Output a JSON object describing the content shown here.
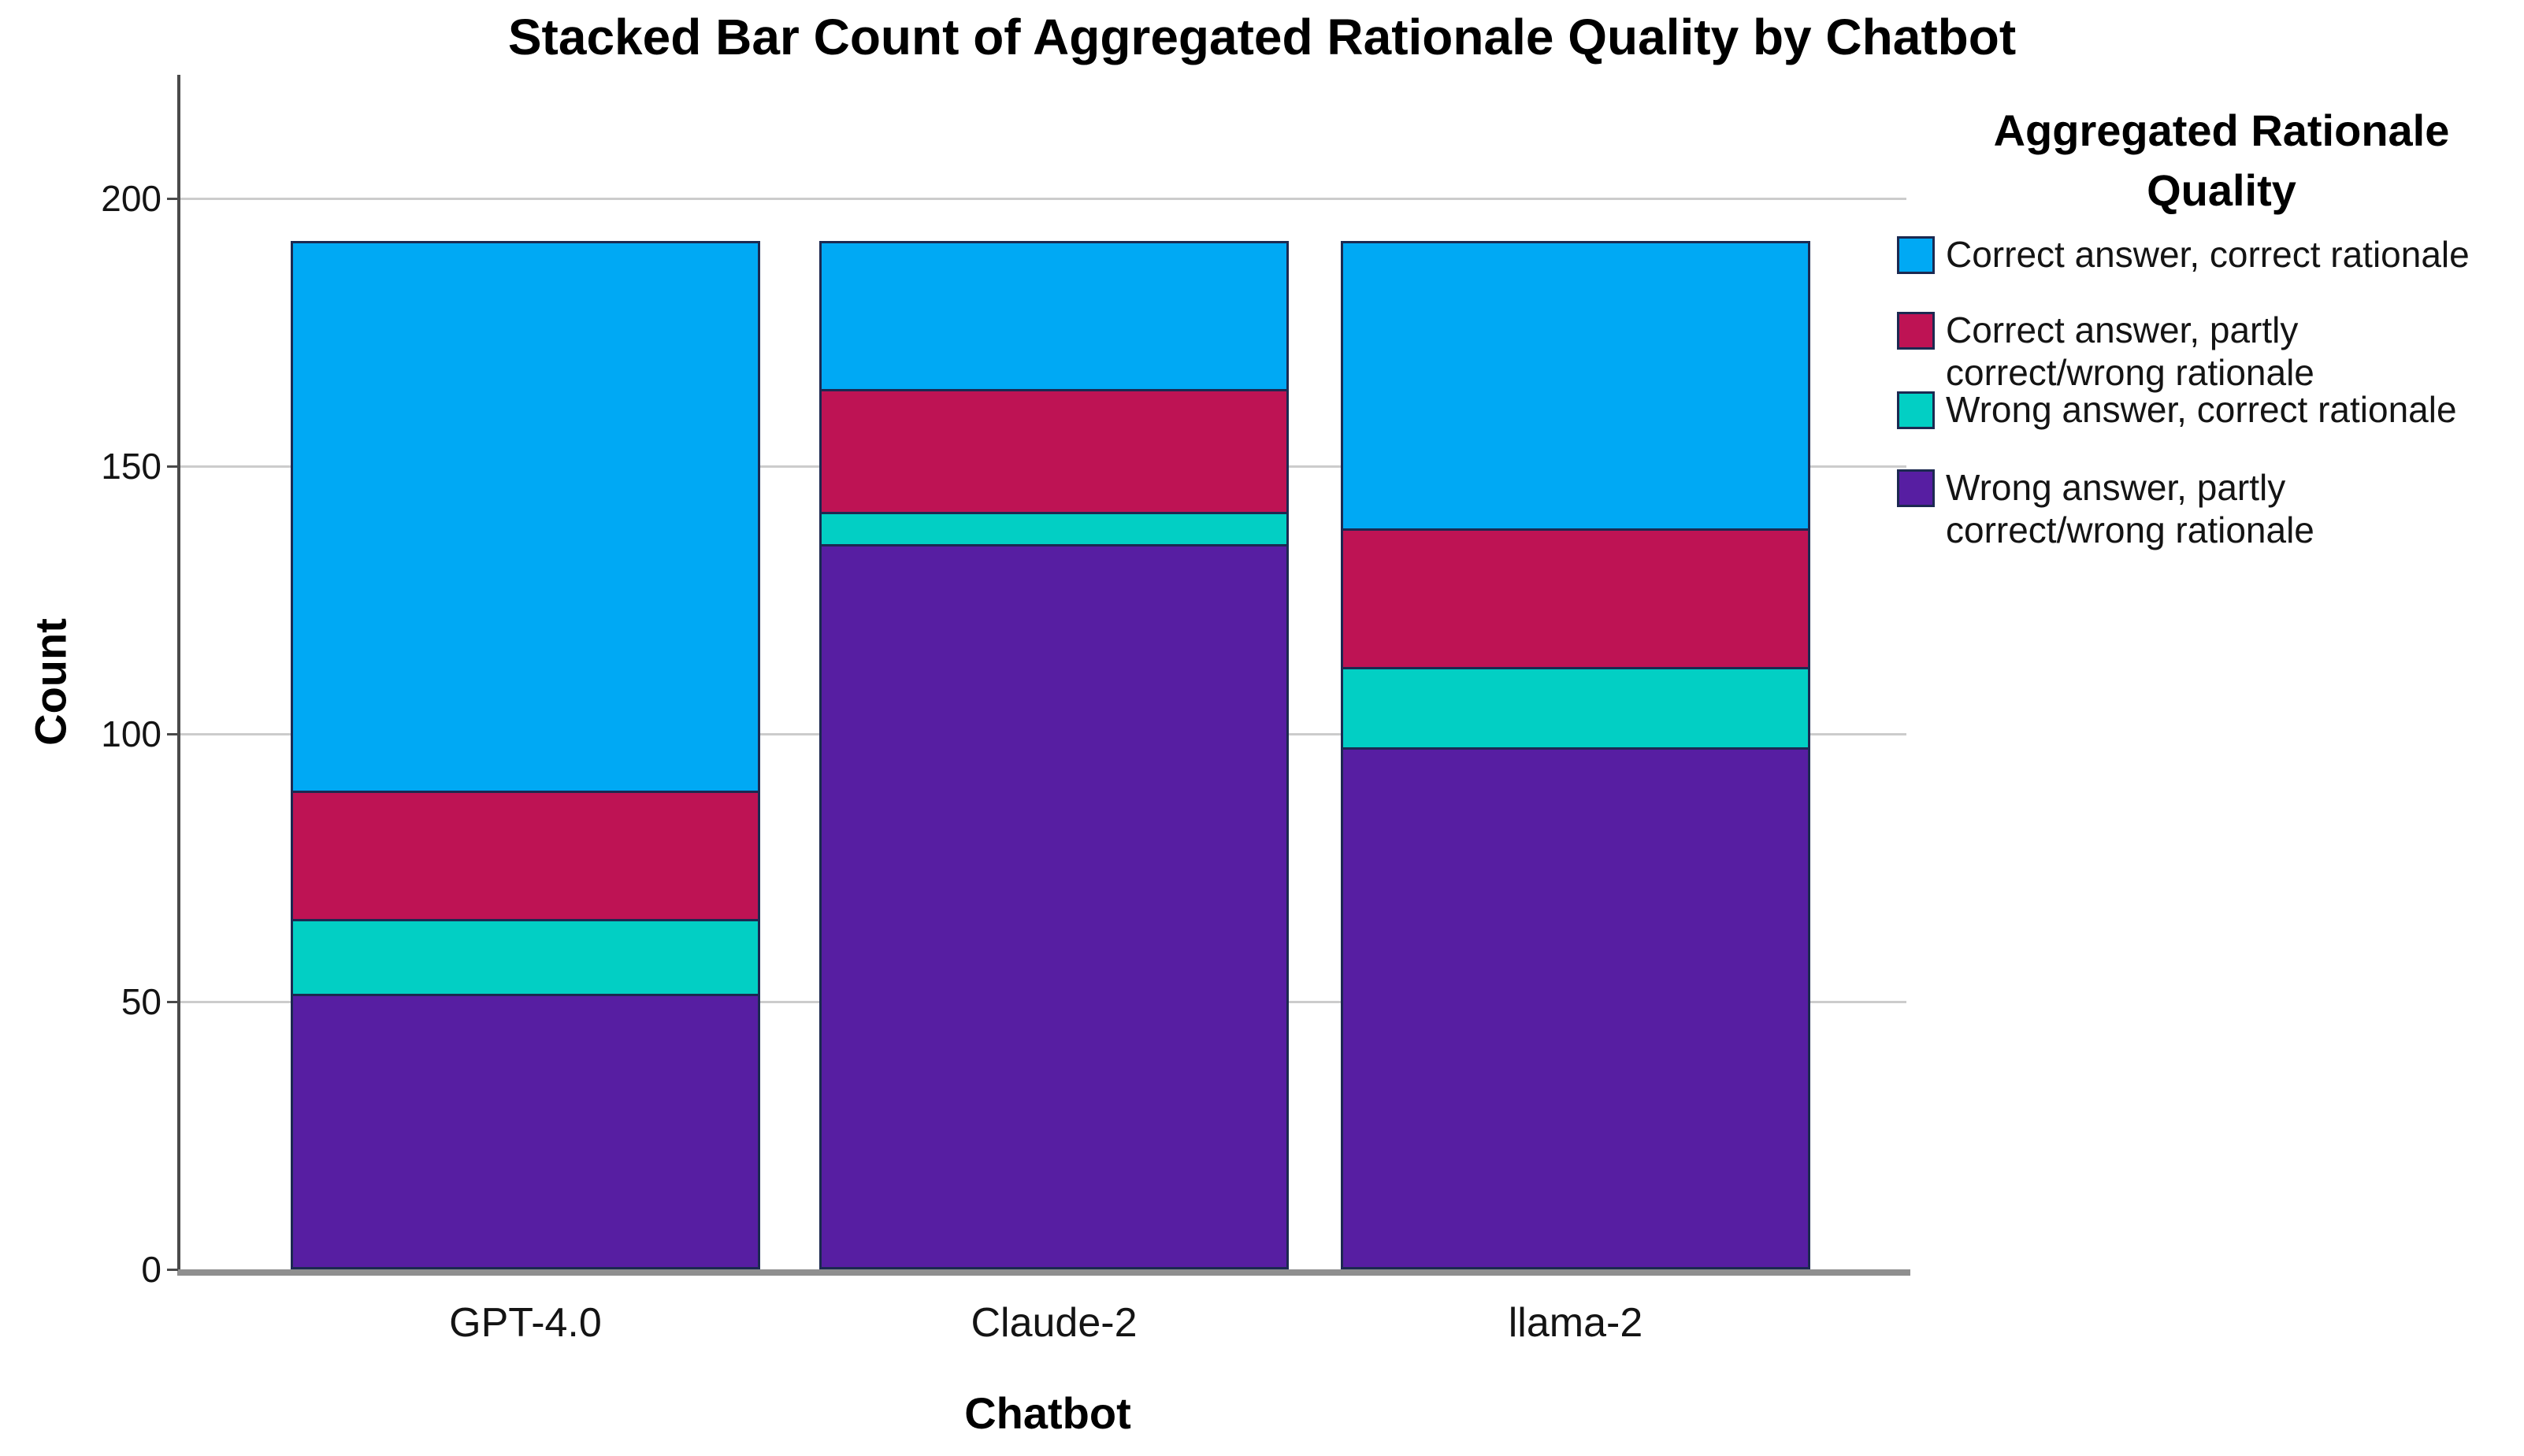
{
  "title": "Stacked Bar Count of Aggregated Rationale Quality by Chatbot",
  "y_axis": {
    "label": "Count",
    "ticks": [
      0,
      50,
      100,
      150,
      200
    ]
  },
  "x_axis": {
    "label": "Chatbot",
    "categories": [
      "GPT-4.0",
      "Claude-2",
      "llama-2"
    ]
  },
  "legend": {
    "title_lines": [
      "Aggregated Rationale",
      "Quality"
    ],
    "entries": [
      {
        "lines": [
          "Correct answer, correct rationale"
        ],
        "color": "#00A9F4"
      },
      {
        "lines": [
          "Correct answer, partly",
          "correct/wrong rationale"
        ],
        "color": "#BE1354"
      },
      {
        "lines": [
          "Wrong answer, correct rationale"
        ],
        "color": "#02CFC4"
      },
      {
        "lines": [
          "Wrong answer, partly",
          "correct/wrong rationale"
        ],
        "color": "#571EA2"
      }
    ]
  },
  "colors": {
    "blue": "#00A9F4",
    "crimson": "#BE1354",
    "teal": "#02CFC4",
    "purple": "#571EA2",
    "segment_border": "#1c2951",
    "gridline": "#cccccc",
    "axis": "#4a4a4a"
  },
  "chart_data": {
    "type": "bar",
    "stacked": true,
    "title": "Stacked Bar Count of Aggregated Rationale Quality by Chatbot",
    "xlabel": "Chatbot",
    "ylabel": "Count",
    "categories": [
      "GPT-4.0",
      "Claude-2",
      "llama-2"
    ],
    "series": [
      {
        "name": "Correct answer, correct rationale",
        "color": "#00A9F4",
        "values": [
          103,
          28,
          54
        ]
      },
      {
        "name": "Correct answer, partly correct/wrong rationale",
        "color": "#BE1354",
        "values": [
          24,
          23,
          26
        ]
      },
      {
        "name": "Wrong answer, correct rationale",
        "color": "#02CFC4",
        "values": [
          14,
          6,
          15
        ]
      },
      {
        "name": "Wrong answer, partly correct/wrong rationale",
        "color": "#571EA2",
        "values": [
          51,
          135,
          97
        ]
      }
    ],
    "totals": [
      192,
      192,
      192
    ],
    "ylim": [
      0,
      220
    ],
    "yticks": [
      0,
      50,
      100,
      150,
      200
    ],
    "grid": "horizontal",
    "legend_position": "right",
    "legend_title": "Aggregated Rationale Quality"
  }
}
